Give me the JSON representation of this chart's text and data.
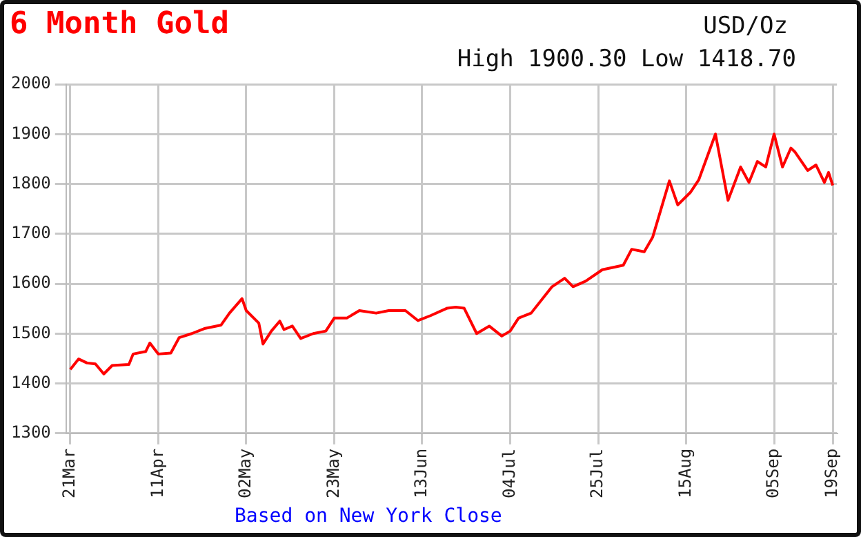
{
  "chart_data": {
    "type": "line",
    "title": "6 Month Gold",
    "annotations": [
      "USD/Oz",
      "High 1900.30 Low 1418.70",
      "Based on New York Close"
    ],
    "x": [
      "--03-21",
      "--03-23",
      "--03-25",
      "--03-27",
      "--03-29",
      "--03-31",
      "--04-04",
      "--04-05",
      "--04-08",
      "--04-09",
      "--04-11",
      "--04-14",
      "--04-16",
      "--04-19",
      "--04-22",
      "--04-26",
      "--04-28",
      "--05-01",
      "--05-02",
      "--05-05",
      "--05-06",
      "--05-08",
      "--05-10",
      "--05-11",
      "--05-13",
      "--05-15",
      "--05-18",
      "--05-21",
      "--05-23",
      "--05-26",
      "--05-29",
      "--06-02",
      "--06-05",
      "--06-09",
      "--06-12",
      "--06-15",
      "--06-19",
      "--06-21",
      "--06-23",
      "--06-26",
      "--06-29",
      "--07-02",
      "--07-04",
      "--07-06",
      "--07-09",
      "--07-14",
      "--07-17",
      "--07-19",
      "--07-22",
      "--07-26",
      "--07-31",
      "--08-02",
      "--08-05",
      "--08-07",
      "--08-11",
      "--08-13",
      "--08-16",
      "--08-18",
      "--08-22",
      "--08-25",
      "--08-28",
      "--08-30",
      "--09-01",
      "--09-03",
      "--09-05",
      "--09-07",
      "--09-09",
      "--09-10",
      "--09-13",
      "--09-15",
      "--09-17",
      "--09-18",
      "--09-19"
    ],
    "series": [
      {
        "color": "#ff0000",
        "values": [
          1428,
          1449,
          1441,
          1439,
          1419,
          1436,
          1438,
          1459,
          1464,
          1481,
          1459,
          1461,
          1492,
          1500,
          1510,
          1517,
          1541,
          1570,
          1546,
          1521,
          1479,
          1505,
          1525,
          1508,
          1515,
          1490,
          1500,
          1505,
          1531,
          1531,
          1546,
          1541,
          1546,
          1546,
          1526,
          1536,
          1551,
          1553,
          1551,
          1500,
          1515,
          1495,
          1505,
          1531,
          1541,
          1594,
          1611,
          1594,
          1605,
          1628,
          1637,
          1669,
          1664,
          1693,
          1806,
          1758,
          1783,
          1808,
          1900,
          1767,
          1834,
          1803,
          1845,
          1834,
          1900,
          1834,
          1872,
          1864,
          1827,
          1838,
          1803,
          1823,
          1797
        ]
      }
    ],
    "xlim": [
      "--03-20",
      "--09-20"
    ],
    "xticks": [
      {
        "value": "--03-21",
        "label": "21Mar"
      },
      {
        "value": "--04-11",
        "label": "11Apr"
      },
      {
        "value": "--05-02",
        "label": "02May"
      },
      {
        "value": "--05-23",
        "label": "23May"
      },
      {
        "value": "--06-13",
        "label": "13Jun"
      },
      {
        "value": "--07-04",
        "label": "04Jul"
      },
      {
        "value": "--07-25",
        "label": "25Jul"
      },
      {
        "value": "--08-15",
        "label": "15Aug"
      },
      {
        "value": "--09-05",
        "label": "05Sep"
      },
      {
        "value": "--09-19",
        "label": "19Sep"
      }
    ],
    "ylim": [
      1300,
      2000
    ],
    "yticks": [
      1300,
      1400,
      1500,
      1600,
      1700,
      1800,
      1900,
      2000
    ],
    "grid": true,
    "legend": false,
    "marker": "none",
    "line_style": "solid"
  }
}
